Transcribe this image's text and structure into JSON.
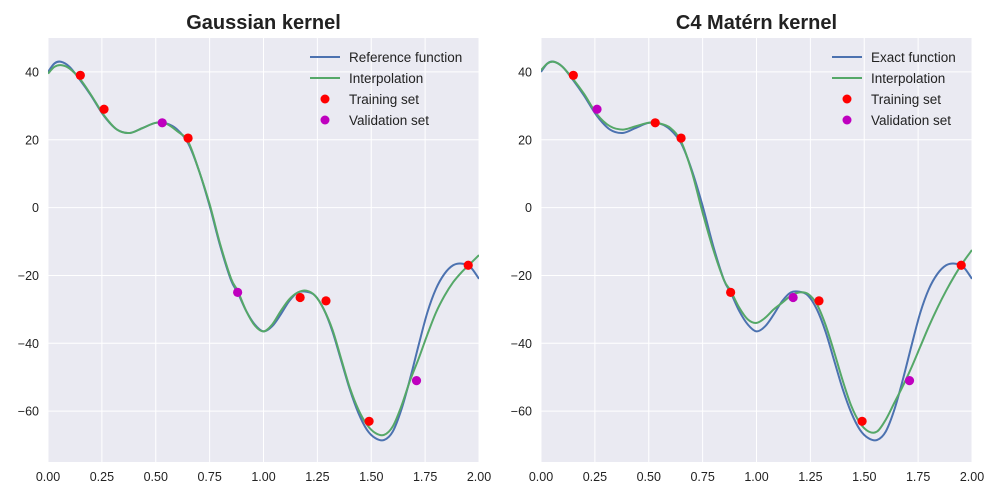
{
  "colors": {
    "background": "#EAEAF2",
    "grid": "#FFFFFF",
    "reference": "#4C72B0",
    "interpolation": "#55A868",
    "training": "#FF0000",
    "validation": "#BF00BF"
  },
  "chart_data": [
    {
      "type": "line",
      "title": "Gaussian kernel",
      "xlabel": "",
      "ylabel": "",
      "xlim": [
        0.0,
        2.0
      ],
      "ylim": [
        -75,
        50
      ],
      "xticks": [
        "0.00",
        "0.25",
        "0.50",
        "0.75",
        "1.00",
        "1.25",
        "1.50",
        "1.75",
        "2.00"
      ],
      "yticks": [
        "40",
        "20",
        "0",
        "−20",
        "−40",
        "−60"
      ],
      "grid": true,
      "legend_position": "top-right",
      "legend": {
        "reference": "Reference function",
        "interpolation": "Interpolation",
        "training": "Training set",
        "validation": "Validation set"
      },
      "reference_function": {
        "x": [
          0.0,
          0.03,
          0.06,
          0.1,
          0.15,
          0.2,
          0.26,
          0.32,
          0.38,
          0.44,
          0.5,
          0.55,
          0.6,
          0.65,
          0.7,
          0.75,
          0.8,
          0.85,
          0.88,
          0.92,
          0.96,
          1.0,
          1.04,
          1.08,
          1.12,
          1.16,
          1.2,
          1.24,
          1.28,
          1.32,
          1.36,
          1.4,
          1.44,
          1.48,
          1.52,
          1.56,
          1.6,
          1.64,
          1.68,
          1.72,
          1.76,
          1.8,
          1.84,
          1.88,
          1.92,
          1.96,
          2.0
        ],
        "y": [
          40.0,
          42.5,
          43.0,
          41.5,
          37.5,
          33.0,
          27.0,
          23.0,
          22.0,
          23.5,
          25.0,
          24.8,
          23.0,
          19.0,
          11.0,
          0.5,
          -11.5,
          -21.5,
          -25.0,
          -30.5,
          -34.5,
          -36.5,
          -35.0,
          -31.5,
          -27.5,
          -25.0,
          -24.8,
          -26.0,
          -30.0,
          -36.5,
          -45.0,
          -53.5,
          -60.5,
          -65.5,
          -68.0,
          -68.5,
          -66.0,
          -59.5,
          -50.5,
          -40.5,
          -31.0,
          -24.0,
          -19.5,
          -17.0,
          -16.5,
          -17.5,
          -21.0
        ]
      },
      "interpolation": {
        "x": [
          0.0,
          0.03,
          0.06,
          0.1,
          0.15,
          0.2,
          0.26,
          0.32,
          0.38,
          0.44,
          0.5,
          0.55,
          0.6,
          0.65,
          0.7,
          0.75,
          0.8,
          0.85,
          0.88,
          0.92,
          0.96,
          1.0,
          1.04,
          1.08,
          1.12,
          1.16,
          1.2,
          1.24,
          1.28,
          1.32,
          1.36,
          1.4,
          1.44,
          1.48,
          1.52,
          1.56,
          1.6,
          1.64,
          1.68,
          1.72,
          1.76,
          1.8,
          1.84,
          1.88,
          1.92,
          1.96,
          2.0
        ],
        "y": [
          39.5,
          41.5,
          42.0,
          41.0,
          37.8,
          33.2,
          27.2,
          23.0,
          22.0,
          23.5,
          25.0,
          24.7,
          22.5,
          19.5,
          11.0,
          1.0,
          -11.0,
          -21.0,
          -24.5,
          -30.5,
          -34.8,
          -36.5,
          -34.5,
          -30.5,
          -27.0,
          -25.0,
          -24.5,
          -26.0,
          -30.0,
          -36.0,
          -44.5,
          -53.0,
          -59.5,
          -64.0,
          -66.5,
          -67.0,
          -64.5,
          -58.5,
          -51.0,
          -44.5,
          -37.5,
          -31.0,
          -26.0,
          -22.0,
          -19.0,
          -16.5,
          -14.0
        ]
      },
      "training_set": {
        "x": [
          0.15,
          0.26,
          0.65,
          1.17,
          1.29,
          1.49,
          1.95
        ],
        "y": [
          39,
          29,
          20.5,
          -26.5,
          -27.5,
          -63,
          -17
        ]
      },
      "validation_set": {
        "x": [
          0.53,
          0.88,
          1.71
        ],
        "y": [
          25,
          -25,
          -51
        ]
      }
    },
    {
      "type": "line",
      "title": "C4 Matérn kernel",
      "xlabel": "",
      "ylabel": "",
      "xlim": [
        0.0,
        2.0
      ],
      "ylim": [
        -75,
        50
      ],
      "xticks": [
        "0.00",
        "0.25",
        "0.50",
        "0.75",
        "1.00",
        "1.25",
        "1.50",
        "1.75",
        "2.00"
      ],
      "yticks": [
        "40",
        "20",
        "0",
        "−20",
        "−40",
        "−60"
      ],
      "grid": true,
      "legend_position": "top-right",
      "legend": {
        "reference": "Exact function",
        "interpolation": "Interpolation",
        "training": "Training set",
        "validation": "Validation set"
      },
      "reference_function": {
        "x": [
          0.0,
          0.03,
          0.06,
          0.1,
          0.15,
          0.2,
          0.26,
          0.32,
          0.38,
          0.44,
          0.5,
          0.55,
          0.6,
          0.65,
          0.7,
          0.75,
          0.8,
          0.85,
          0.88,
          0.92,
          0.96,
          1.0,
          1.04,
          1.08,
          1.12,
          1.16,
          1.2,
          1.24,
          1.28,
          1.32,
          1.36,
          1.4,
          1.44,
          1.48,
          1.52,
          1.56,
          1.6,
          1.64,
          1.68,
          1.72,
          1.76,
          1.8,
          1.84,
          1.88,
          1.92,
          1.96,
          2.0
        ],
        "y": [
          40.0,
          42.5,
          43.0,
          41.5,
          37.5,
          33.0,
          27.0,
          23.0,
          22.0,
          23.5,
          25.0,
          24.8,
          23.0,
          19.0,
          11.0,
          0.5,
          -11.5,
          -21.5,
          -25.0,
          -30.5,
          -34.5,
          -36.5,
          -35.0,
          -31.5,
          -27.5,
          -25.0,
          -24.8,
          -26.0,
          -30.0,
          -36.5,
          -45.0,
          -53.5,
          -60.5,
          -65.5,
          -68.0,
          -68.5,
          -66.0,
          -59.5,
          -50.5,
          -40.5,
          -31.0,
          -24.0,
          -19.5,
          -17.0,
          -16.5,
          -17.5,
          -21.0
        ]
      },
      "interpolation": {
        "x": [
          0.0,
          0.03,
          0.06,
          0.1,
          0.15,
          0.2,
          0.26,
          0.32,
          0.38,
          0.44,
          0.5,
          0.55,
          0.6,
          0.65,
          0.7,
          0.75,
          0.8,
          0.85,
          0.88,
          0.92,
          0.96,
          1.0,
          1.04,
          1.08,
          1.12,
          1.16,
          1.2,
          1.24,
          1.28,
          1.32,
          1.36,
          1.4,
          1.44,
          1.48,
          1.52,
          1.56,
          1.6,
          1.64,
          1.68,
          1.72,
          1.76,
          1.8,
          1.84,
          1.88,
          1.92,
          1.96,
          2.0
        ],
        "y": [
          40.5,
          42.5,
          43.0,
          41.5,
          37.8,
          33.5,
          27.5,
          24.0,
          23.0,
          24.0,
          25.0,
          24.8,
          23.5,
          19.5,
          10.5,
          -1.5,
          -12.5,
          -21.5,
          -24.5,
          -29.5,
          -33.0,
          -34.0,
          -32.5,
          -30.0,
          -28.0,
          -26.0,
          -25.0,
          -25.5,
          -28.5,
          -34.5,
          -42.5,
          -51.0,
          -58.5,
          -63.5,
          -66.0,
          -66.0,
          -62.5,
          -57.5,
          -52.5,
          -47.0,
          -41.0,
          -35.0,
          -29.5,
          -24.5,
          -20.0,
          -16.0,
          -12.5
        ]
      },
      "training_set": {
        "x": [
          0.15,
          0.53,
          0.65,
          0.88,
          1.29,
          1.49,
          1.95
        ],
        "y": [
          39,
          25,
          20.5,
          -25,
          -27.5,
          -63,
          -17
        ]
      },
      "validation_set": {
        "x": [
          0.26,
          1.17,
          1.71
        ],
        "y": [
          29,
          -26.5,
          -51
        ]
      }
    }
  ]
}
